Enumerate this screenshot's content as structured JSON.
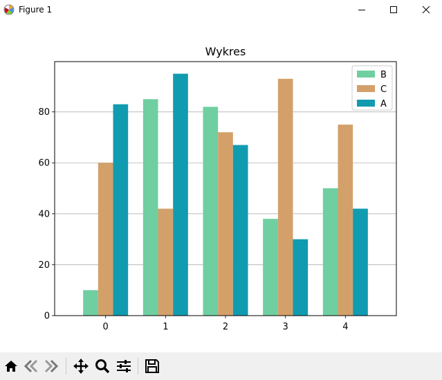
{
  "window": {
    "title": "Figure 1",
    "icons": {
      "app": "matplotlib-icon",
      "minimize": "minimize-icon",
      "maximize": "maximize-icon",
      "close": "close-icon"
    }
  },
  "toolbar": {
    "buttons": [
      {
        "name": "home-button",
        "icon": "home-icon"
      },
      {
        "name": "back-button",
        "icon": "back-arrow-icon"
      },
      {
        "name": "forward-button",
        "icon": "forward-arrow-icon"
      },
      {
        "name": "pan-button",
        "icon": "move-icon"
      },
      {
        "name": "zoom-button",
        "icon": "magnifier-icon"
      },
      {
        "name": "configure-subplots-button",
        "icon": "sliders-icon"
      },
      {
        "name": "save-button",
        "icon": "floppy-disk-icon"
      }
    ]
  },
  "chart_data": {
    "type": "bar",
    "title": "Wykres",
    "xlabel": "",
    "ylabel": "",
    "categories": [
      "0",
      "1",
      "2",
      "3",
      "4"
    ],
    "series": [
      {
        "name": "B",
        "color": "#6fcfa0",
        "values": [
          10,
          85,
          82,
          38,
          50
        ]
      },
      {
        "name": "C",
        "color": "#d4a06a",
        "values": [
          60,
          42,
          72,
          93,
          75
        ]
      },
      {
        "name": "A",
        "color": "#119bb0",
        "values": [
          83,
          95,
          67,
          30,
          42
        ]
      }
    ],
    "ylim": [
      0,
      99.75
    ],
    "yticks": [
      0,
      20,
      40,
      60,
      80
    ],
    "grid": "y",
    "legend": "top-right"
  }
}
